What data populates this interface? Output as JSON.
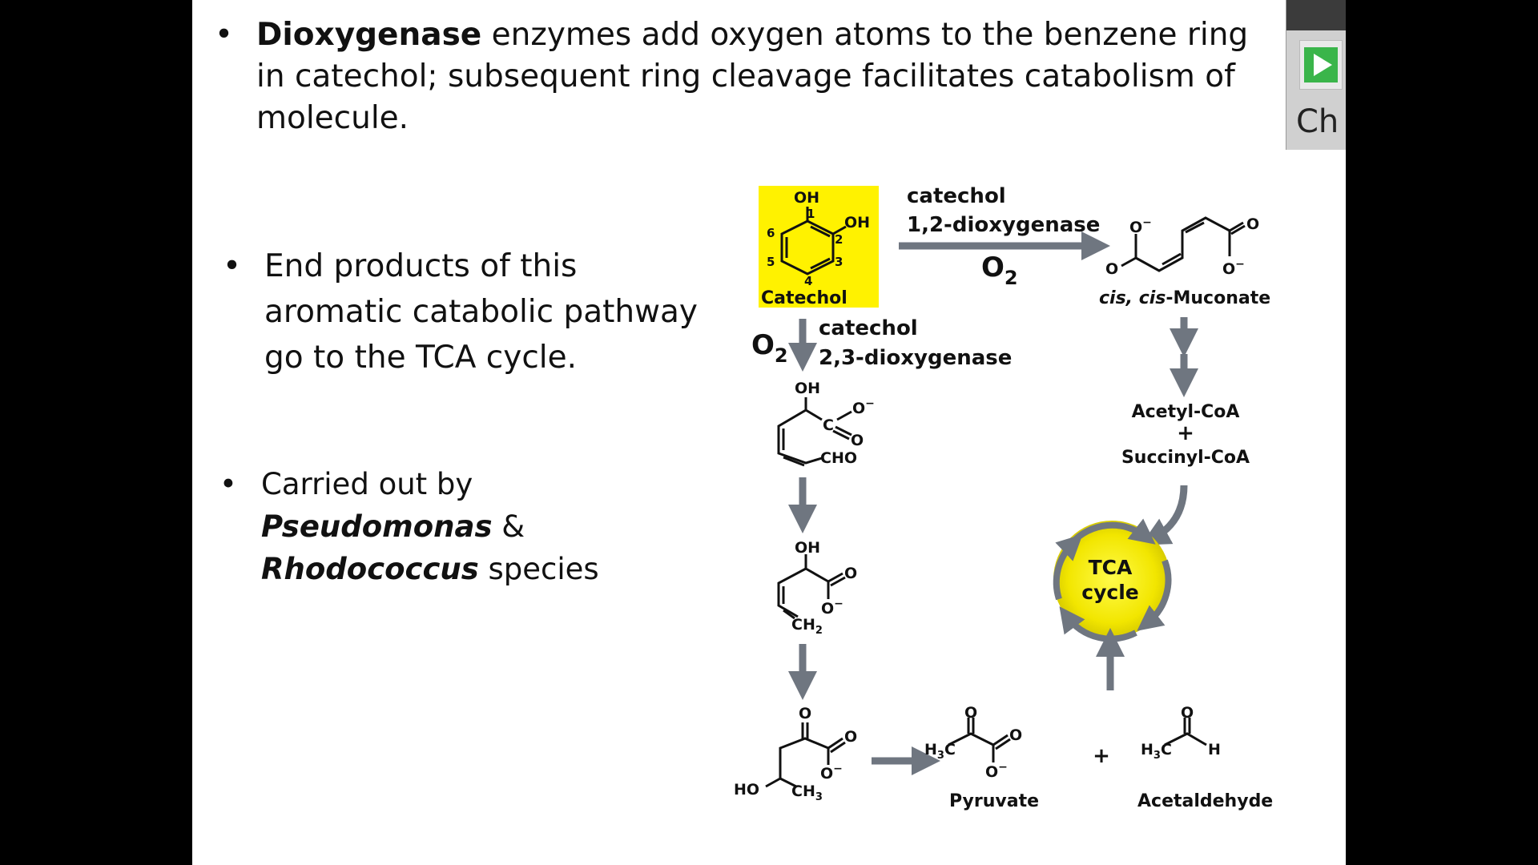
{
  "bullets": [
    {
      "dot": "•",
      "bold": "Dioxygenase",
      "rest": " enzymes add oxygen atoms to the benzene ring in catechol; subsequent ring cleavage facilitates catabolism of molecule."
    },
    {
      "dot": "•",
      "text": "End products of this aromatic catabolic pathway go to the TCA cycle."
    },
    {
      "dot": "•",
      "pre": "Carried out by ",
      "genus1": "Pseudomonas",
      "mid": " & ",
      "genus2": "Rhodococcus",
      "post": " species"
    }
  ],
  "player": {
    "label": "Ch",
    "play_icon": "play-icon"
  },
  "diagram": {
    "catechol_label": "Catechol",
    "oh": "OH",
    "ring_numbers": [
      "1",
      "2",
      "3",
      "4",
      "5",
      "6"
    ],
    "enzyme_12_line1": "catechol",
    "enzyme_12_line2": "1,2-dioxygenase",
    "enzyme_23_line1": "catechol",
    "enzyme_23_line2": "2,3-dioxygenase",
    "o2": "O",
    "o2_sub": "2",
    "muconate_label_italic": "cis, cis",
    "muconate_label_rest": "-Muconate",
    "acetyl_coa": "Acetyl-CoA",
    "plus": "+",
    "succinyl_coa": "Succinyl-CoA",
    "tca_line1": "TCA",
    "tca_line2": "cycle",
    "cho": "CHO",
    "c": "C",
    "o": "O",
    "o_minus": "O",
    "minus": "−",
    "ch2": "CH",
    "ch3": "CH",
    "sub2": "2",
    "sub3": "3",
    "ho": "HO",
    "h3c": "H",
    "h": "H",
    "pyruvate": "Pyruvate",
    "acetaldehyde": "Acetaldehyde",
    "highlight_color": "#fff200",
    "arrow_color": "#6f7680"
  }
}
